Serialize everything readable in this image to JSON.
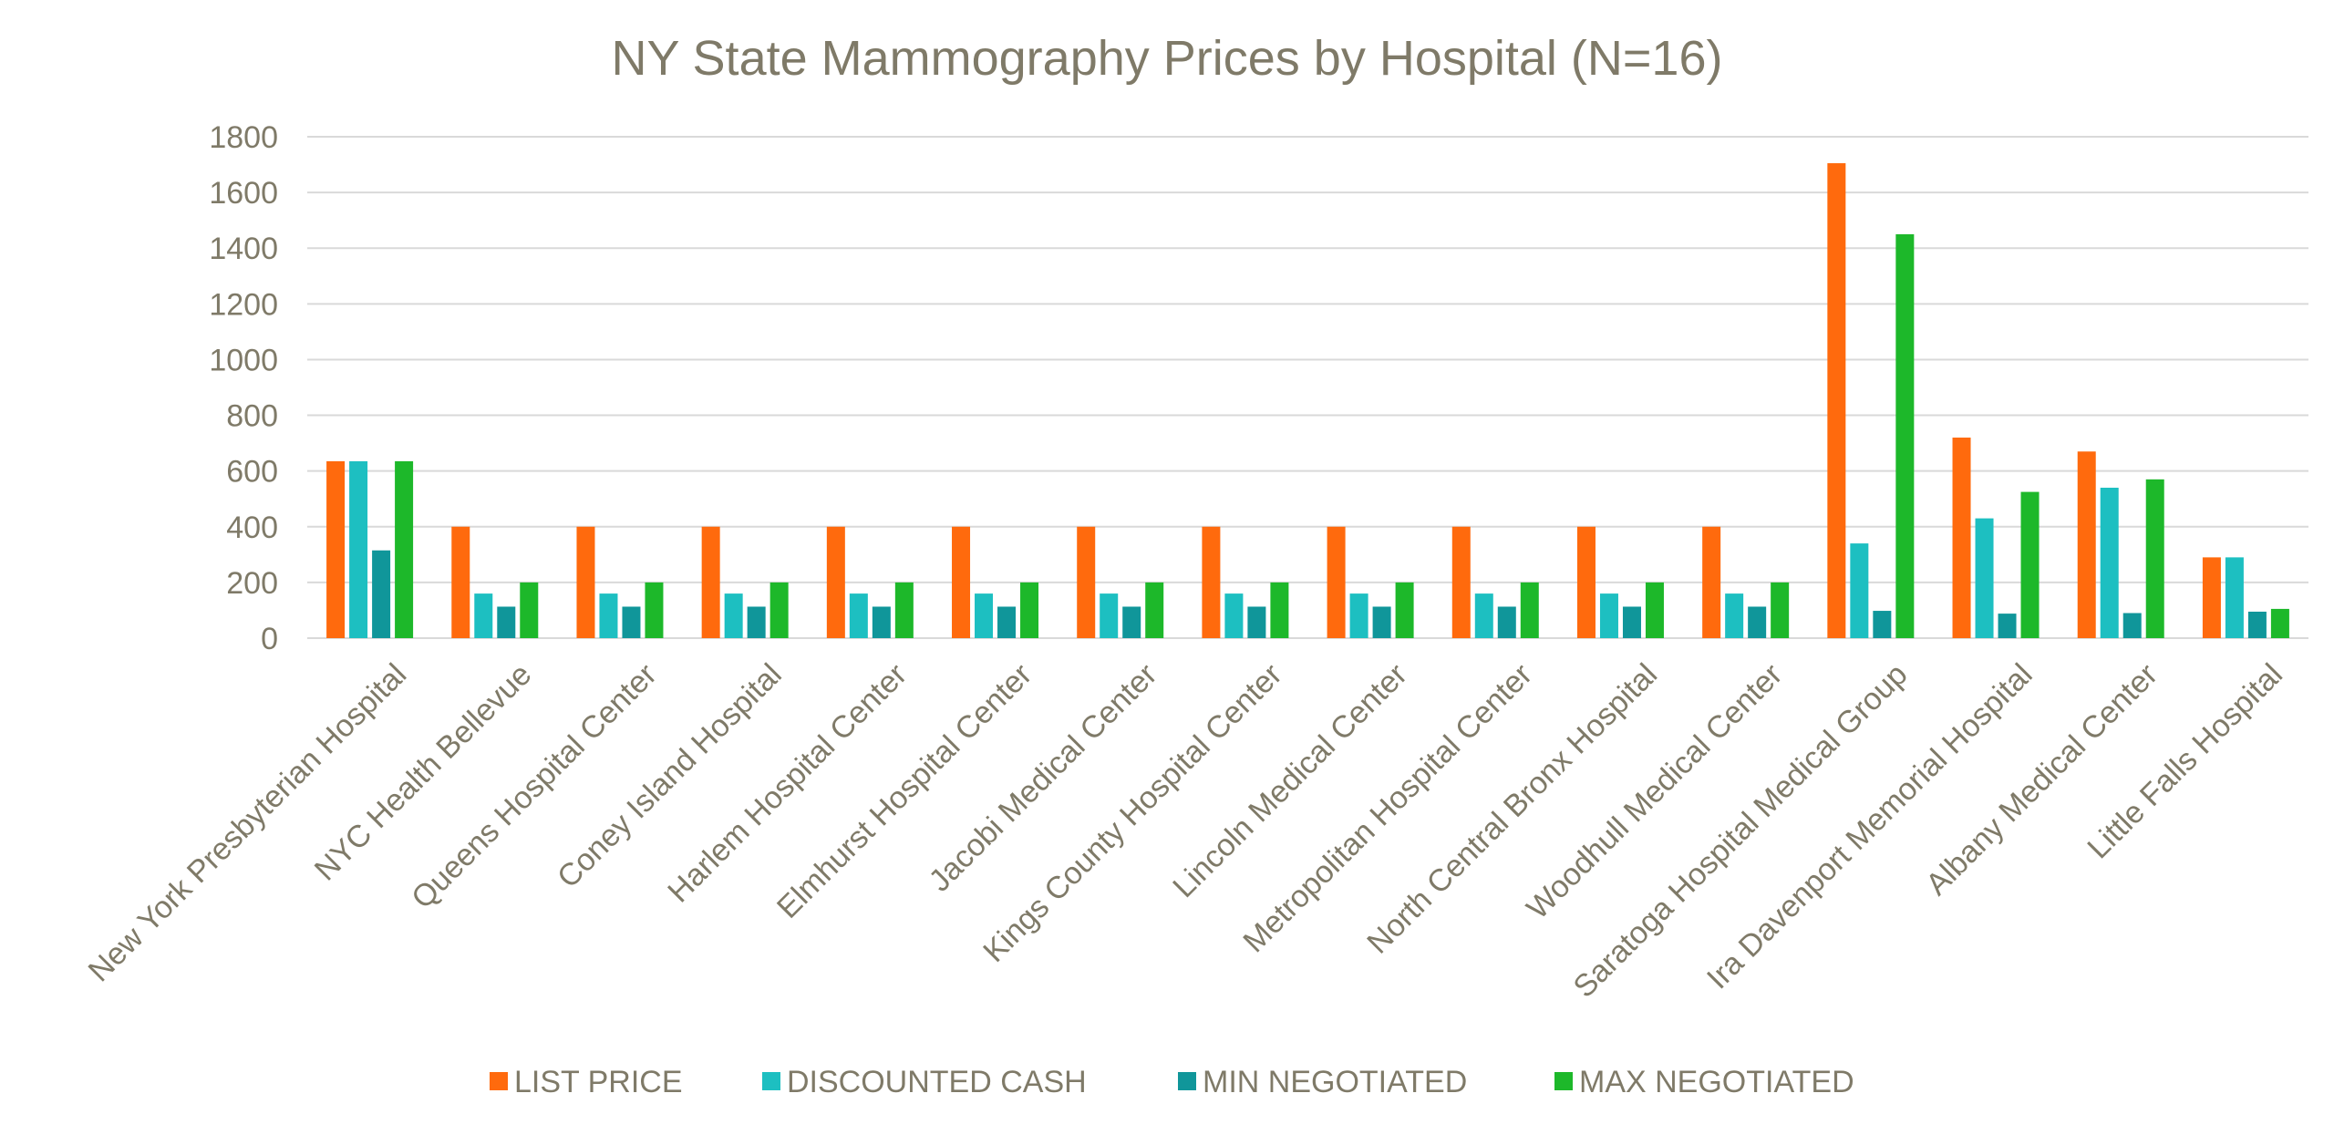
{
  "chart_data": {
    "type": "bar",
    "title": "NY State Mammography Prices by Hospital (N=16)",
    "xlabel": "",
    "ylabel": "",
    "ylim": [
      0,
      1800
    ],
    "yticks": [
      0,
      200,
      400,
      600,
      800,
      1000,
      1200,
      1400,
      1600,
      1800
    ],
    "grid": true,
    "legend_position": "bottom",
    "categories": [
      "New York Presbyterian Hospital",
      "NYC Health Bellevue",
      "Queens Hospital Center",
      "Coney Island Hospital",
      "Harlem Hospital Center",
      "Elmhurst Hospital Center",
      "Jacobi Medical Center",
      "Kings County Hospital Center",
      "Lincoln Medical Center",
      "Metropolitan Hospital Center",
      "North Central Bronx Hospital",
      "Woodhull Medical Center",
      "Saratoga Hospital Medical Group",
      "Ira Davenport Memorial Hospital",
      "Albany Medical Center",
      "Little Falls Hospital"
    ],
    "series": [
      {
        "name": "LIST PRICE",
        "color": "#FF6A0D",
        "values": [
          635,
          400,
          400,
          400,
          400,
          400,
          400,
          400,
          400,
          400,
          400,
          400,
          1705,
          720,
          670,
          290
        ]
      },
      {
        "name": "DISCOUNTED CASH",
        "color": "#1DBFC1",
        "values": [
          635,
          160,
          160,
          160,
          160,
          160,
          160,
          160,
          160,
          160,
          160,
          160,
          340,
          430,
          540,
          290
        ]
      },
      {
        "name": "MIN NEGOTIATED",
        "color": "#10969A",
        "values": [
          315,
          113,
          113,
          113,
          113,
          113,
          113,
          113,
          113,
          113,
          113,
          113,
          98,
          88,
          90,
          95
        ]
      },
      {
        "name": "MAX NEGOTIATED",
        "color": "#1DB82A",
        "values": [
          635,
          200,
          200,
          200,
          200,
          200,
          200,
          200,
          200,
          200,
          200,
          200,
          1450,
          525,
          570,
          105
        ]
      }
    ]
  }
}
